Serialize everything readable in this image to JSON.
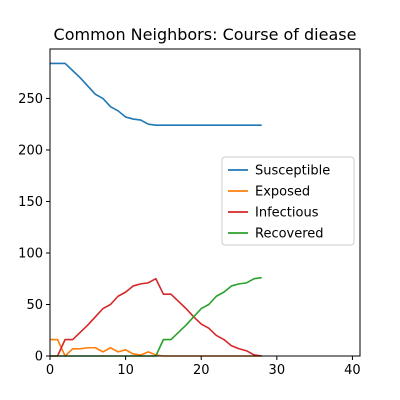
{
  "chart_data": {
    "type": "line",
    "title": "Common Neighbors: Course of diease",
    "xlabel": "",
    "ylabel": "",
    "xlim": [
      0,
      41
    ],
    "ylim": [
      0,
      298
    ],
    "xticks": [
      0,
      10,
      20,
      30,
      40
    ],
    "yticks": [
      0,
      50,
      100,
      150,
      200,
      250
    ],
    "grid": false,
    "legend_placement": "center-right",
    "x": [
      0,
      1,
      2,
      3,
      4,
      5,
      6,
      7,
      8,
      9,
      10,
      11,
      12,
      13,
      14,
      15,
      16,
      17,
      18,
      19,
      20,
      21,
      22,
      23,
      24,
      25,
      26,
      27,
      28
    ],
    "series": [
      {
        "name": "Susceptible",
        "color": "#1f77b4",
        "values": [
          284,
          284,
          284,
          277,
          270,
          262,
          254,
          250,
          242,
          238,
          232,
          230,
          229,
          225,
          224,
          224,
          224,
          224,
          224,
          224,
          224,
          224,
          224,
          224,
          224,
          224,
          224,
          224,
          224
        ]
      },
      {
        "name": "Exposed",
        "color": "#ff7f0e",
        "values": [
          16,
          16,
          0,
          7,
          7,
          8,
          8,
          4,
          8,
          4,
          6,
          2,
          1,
          4,
          1,
          0,
          0,
          0,
          0,
          0,
          0,
          0,
          0,
          0,
          0,
          0,
          0,
          0,
          0
        ]
      },
      {
        "name": "Infectious",
        "color": "#d62728",
        "values": [
          0,
          0,
          16,
          16,
          23,
          30,
          38,
          46,
          50,
          58,
          62,
          68,
          70,
          71,
          75,
          60,
          60,
          53,
          46,
          38,
          31,
          27,
          20,
          16,
          10,
          7,
          5,
          1,
          0
        ]
      },
      {
        "name": "Recovered",
        "color": "#2ca02c",
        "values": [
          0,
          0,
          0,
          0,
          0,
          0,
          0,
          0,
          0,
          0,
          0,
          0,
          0,
          0,
          0,
          16,
          16,
          23,
          30,
          38,
          46,
          50,
          58,
          62,
          68,
          70,
          71,
          75,
          76
        ]
      }
    ]
  }
}
